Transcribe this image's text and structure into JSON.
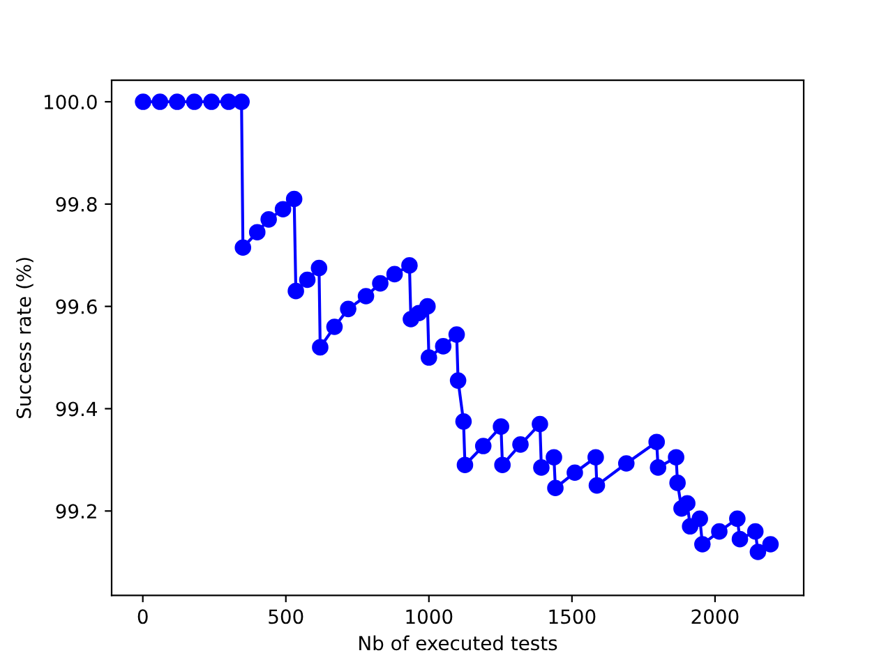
{
  "chart_data": {
    "type": "line",
    "xlabel": "Nb of executed tests",
    "ylabel": "Success rate (%)",
    "x": [
      1,
      60,
      120,
      180,
      240,
      300,
      345,
      350,
      400,
      440,
      490,
      529,
      535,
      575,
      616,
      620,
      670,
      718,
      780,
      830,
      880,
      932,
      937,
      965,
      995,
      1000,
      1050,
      1097,
      1102,
      1121,
      1126,
      1190,
      1252,
      1257,
      1320,
      1388,
      1393,
      1437,
      1442,
      1510,
      1583,
      1587,
      1690,
      1796,
      1801,
      1864,
      1869,
      1883,
      1903,
      1913,
      1947,
      1956,
      2015,
      2078,
      2087,
      2141,
      2150,
      2194
    ],
    "series": [
      {
        "color": "#0000ff",
        "values": [
          100.0,
          100.0,
          100.0,
          100.0,
          100.0,
          100.0,
          100.0,
          99.715,
          99.745,
          99.77,
          99.79,
          99.81,
          99.63,
          99.652,
          99.675,
          99.52,
          99.56,
          99.595,
          99.62,
          99.645,
          99.663,
          99.68,
          99.575,
          99.587,
          99.6,
          99.5,
          99.522,
          99.545,
          99.455,
          99.375,
          99.29,
          99.327,
          99.365,
          99.29,
          99.33,
          99.37,
          99.285,
          99.305,
          99.245,
          99.275,
          99.305,
          99.25,
          99.293,
          99.335,
          99.285,
          99.305,
          99.255,
          99.205,
          99.215,
          99.17,
          99.185,
          99.135,
          99.16,
          99.185,
          99.145,
          99.16,
          99.12,
          99.135
        ]
      }
    ],
    "xlim": [
      -109,
      2310
    ],
    "ylim": [
      99.035,
      100.042
    ],
    "xticks": [
      0,
      500,
      1000,
      1500,
      2000
    ],
    "yticks": [
      99.2,
      99.4,
      99.6,
      99.8,
      {
        "value": 100,
        "label": "100.0"
      }
    ],
    "marker": "circle",
    "line_style": "solid",
    "grid": false,
    "legend": false
  }
}
